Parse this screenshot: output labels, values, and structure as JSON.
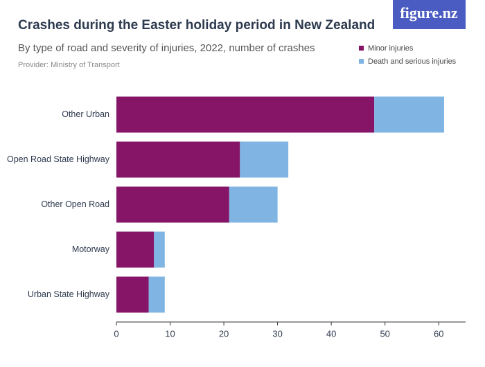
{
  "brand": "figure.nz",
  "chart_data": {
    "type": "stacked-barh",
    "title": "Crashes during the Easter holiday period in New Zealand",
    "subtitle": "By type of road and severity of injuries, 2022, number of crashes",
    "source": "Provider: Ministry of Transport",
    "categories": [
      "Other Urban",
      "Open Road State Highway",
      "Other Open Road",
      "Motorway",
      "Urban State Highway"
    ],
    "series": [
      {
        "name": "Minor injuries",
        "color": "#861568",
        "values": [
          48,
          23,
          21,
          7,
          6
        ]
      },
      {
        "name": "Death and serious injuries",
        "color": "#7fb4e3",
        "values": [
          13,
          9,
          9,
          2,
          3
        ]
      }
    ],
    "xlim": [
      0,
      65
    ],
    "xticks": [
      0,
      10,
      20,
      30,
      40,
      50,
      60
    ],
    "grid": false,
    "legend": "top-right"
  }
}
